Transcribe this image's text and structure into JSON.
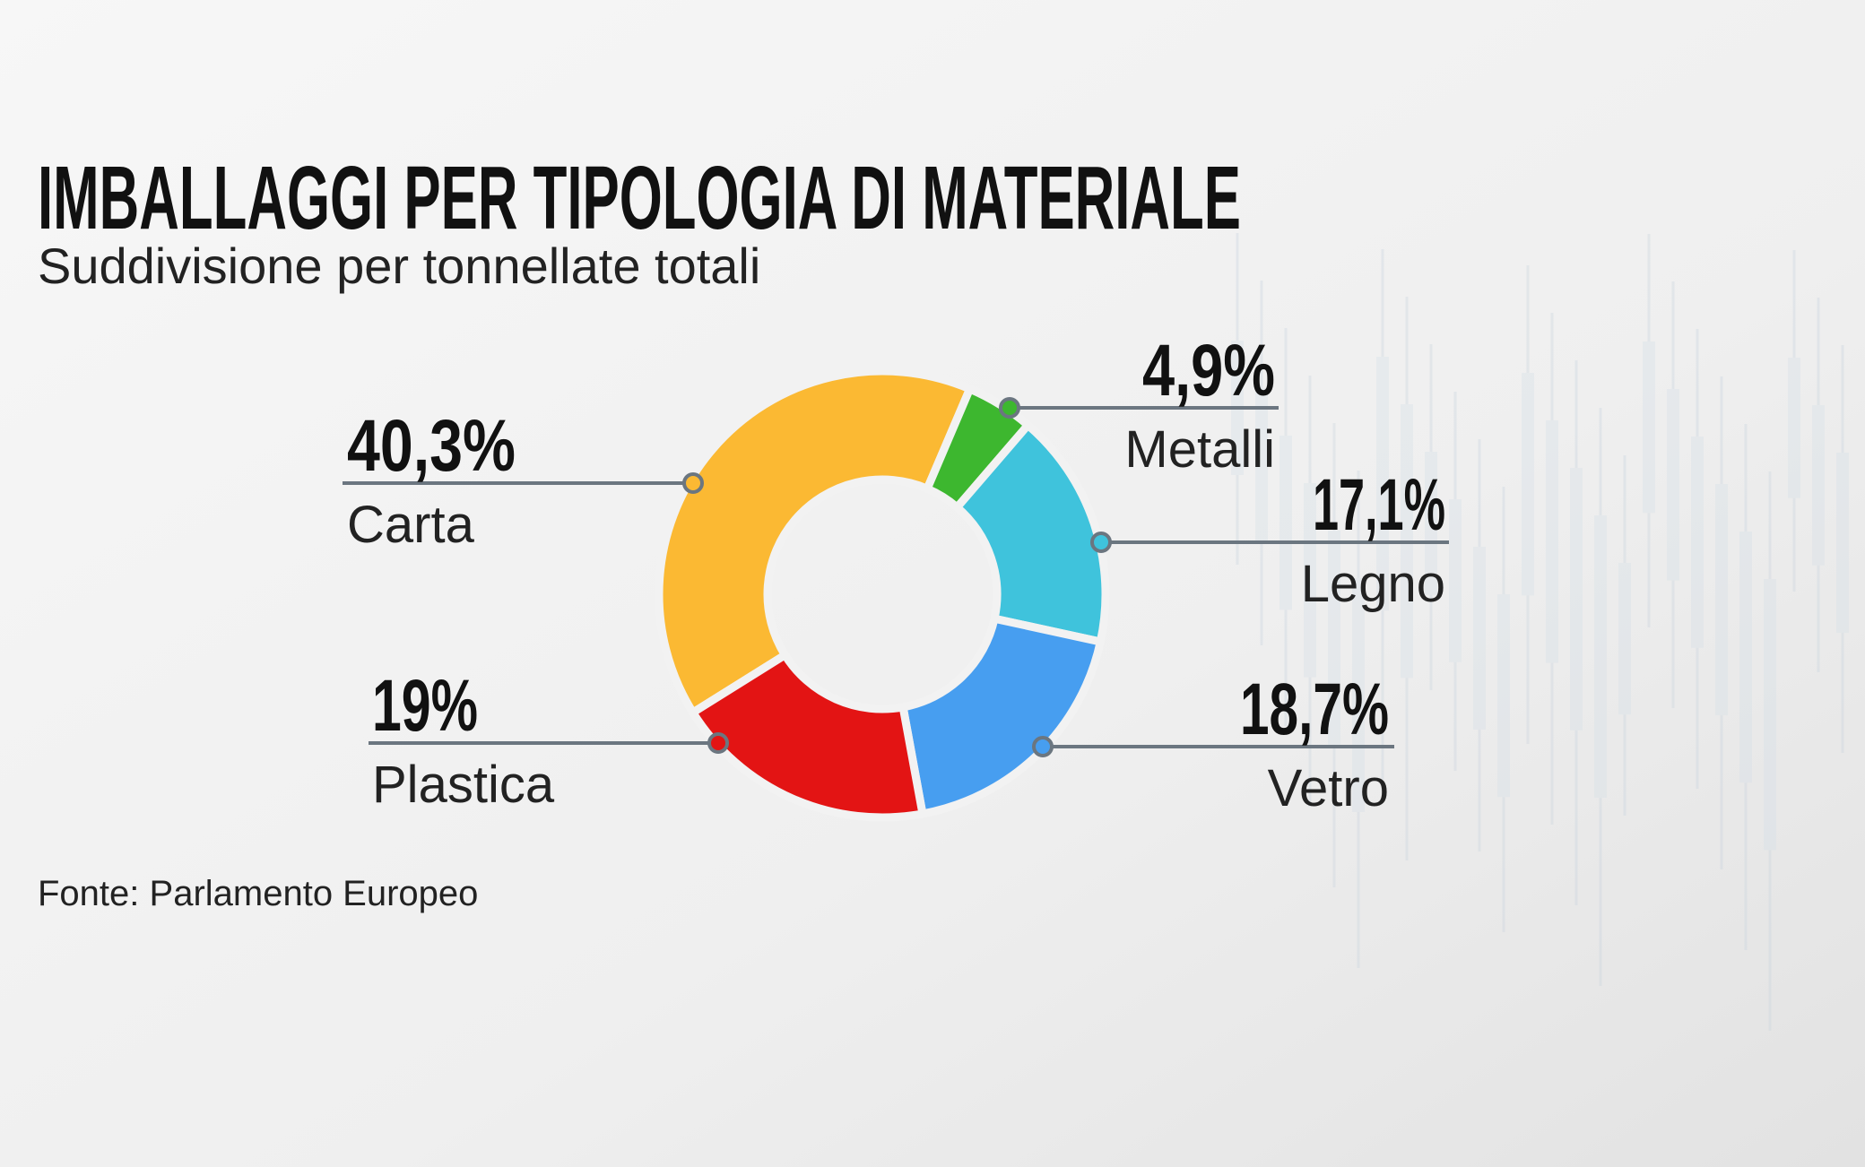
{
  "chart_data": {
    "type": "donut",
    "title": "IMBALLAGGI PER TIPOLOGIA DI MATERIALE",
    "subtitle": "Suddivisione per tonnellate totali",
    "source": "Fonte: Parlamento Europeo",
    "categories": [
      "Carta",
      "Metalli",
      "Legno",
      "Vetro",
      "Plastica"
    ],
    "values": [
      40.3,
      4.9,
      17.1,
      18.7,
      19
    ],
    "value_labels": [
      "40,3%",
      "4,9%",
      "17,1%",
      "18,7%",
      "19%"
    ],
    "colors": [
      "#fbb933",
      "#3db72f",
      "#3fc3dc",
      "#479ef0",
      "#e31414"
    ]
  }
}
